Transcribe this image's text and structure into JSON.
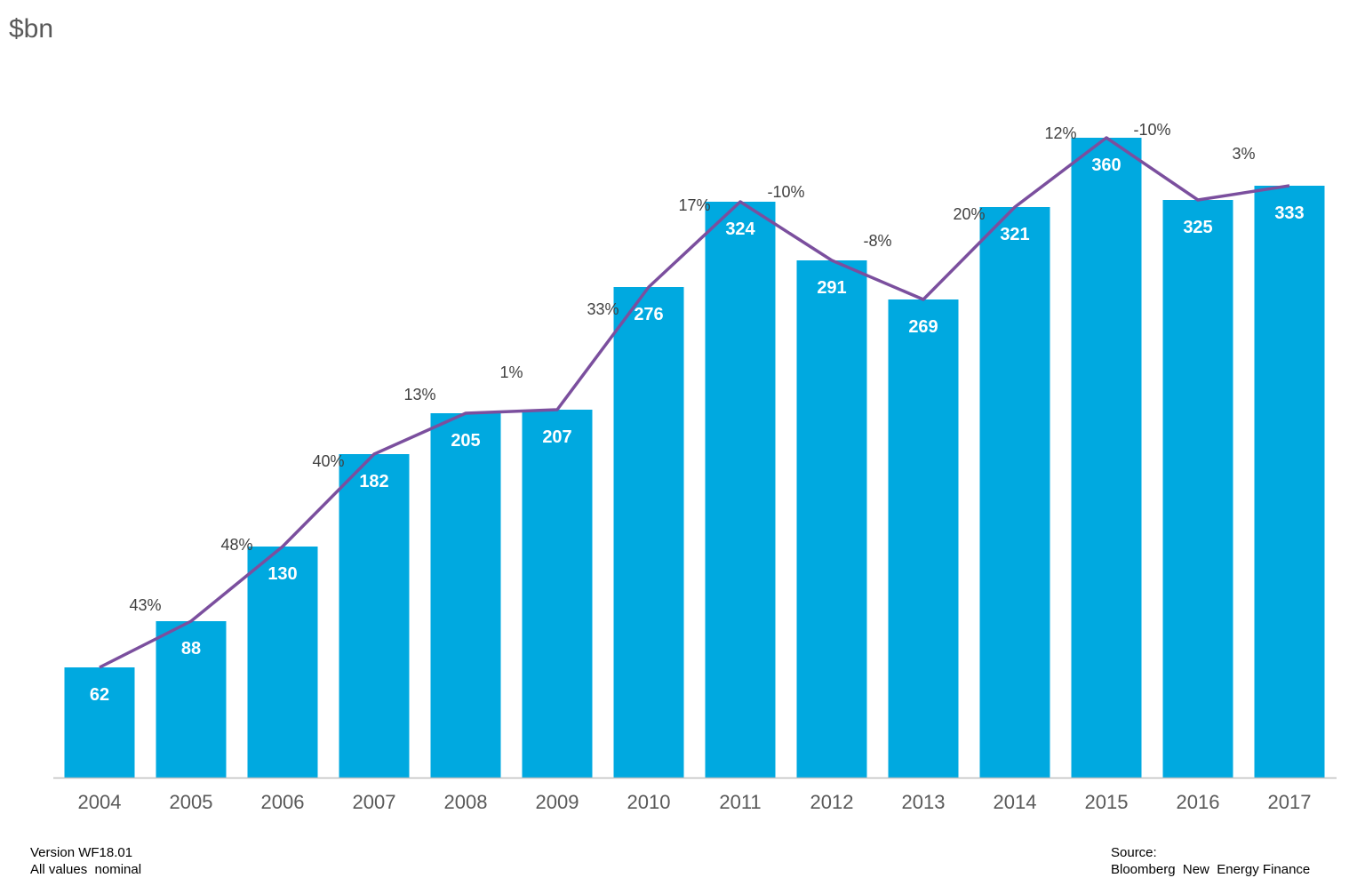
{
  "unit_label": "$bn",
  "footer": {
    "version": "Version WF18.01",
    "values_note": "All values  nominal",
    "source_label": "Source:",
    "source_name": "Bloomberg  New  Energy Finance"
  },
  "colors": {
    "bar": "#00a9e0",
    "line": "#7b4f9e",
    "axis": "#bfbfbf",
    "tick_text": "#595959",
    "value_text": "#ffffff",
    "growth_text": "#404040"
  },
  "chart_data": {
    "type": "bar",
    "categories": [
      "2004",
      "2005",
      "2006",
      "2007",
      "2008",
      "2009",
      "2010",
      "2011",
      "2012",
      "2013",
      "2014",
      "2015",
      "2016",
      "2017"
    ],
    "series": [
      {
        "values": [
          62,
          88,
          130,
          182,
          205,
          207,
          276,
          324,
          291,
          269,
          321,
          360,
          325,
          333
        ]
      }
    ],
    "line_series": {
      "values": [
        62,
        88,
        130,
        182,
        205,
        207,
        276,
        324,
        291,
        269,
        321,
        360,
        325,
        333
      ]
    },
    "growth_labels": [
      "43%",
      "48%",
      "40%",
      "13%",
      "1%",
      "33%",
      "17%",
      "-10%",
      "-8%",
      "20%",
      "12%",
      "-10%",
      "3%"
    ],
    "ylabel": "$bn",
    "ylim": [
      0,
      390
    ],
    "grid": false
  }
}
